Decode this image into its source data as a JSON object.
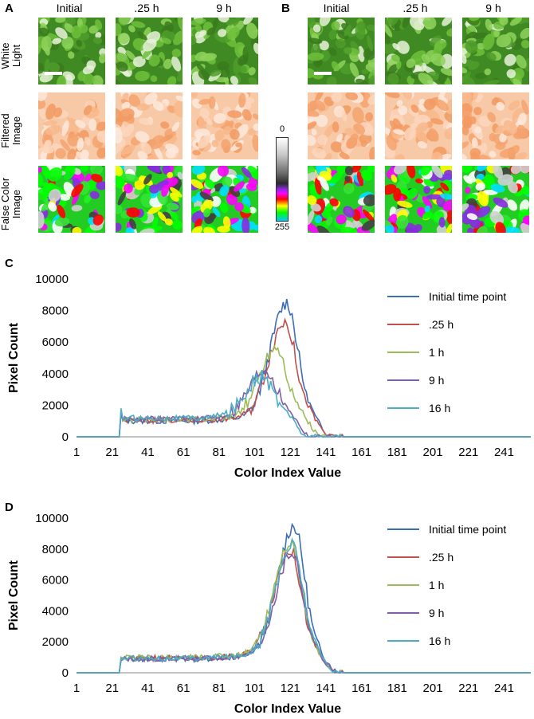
{
  "panels": {
    "A": {
      "letter": "A",
      "columns": [
        "Initial",
        ".25 h",
        "9 h"
      ],
      "rows": [
        [
          "White",
          "Light"
        ],
        [
          "Filtered",
          "Image"
        ],
        [
          "False Color",
          "Image"
        ]
      ]
    },
    "B": {
      "letter": "B",
      "columns": [
        "Initial",
        ".25 h",
        "9 h"
      ]
    },
    "colorbar": {
      "top_label": "0",
      "bottom_label": "255"
    }
  },
  "colors": {
    "leaf_green": "#5aa832",
    "filtered_orange": "#f5b58a",
    "series": [
      "#3c6eb4",
      "#c0504d",
      "#9bbb59",
      "#7f5fa8",
      "#4bacc6"
    ]
  },
  "chart_data": [
    {
      "panel": "C",
      "type": "line",
      "xlabel": "Color Index Value",
      "ylabel": "Pixel Count",
      "xlim": [
        1,
        256
      ],
      "ylim": [
        0,
        10000
      ],
      "xticks": [
        1,
        21,
        41,
        61,
        81,
        101,
        121,
        141,
        161,
        181,
        201,
        221,
        241
      ],
      "yticks": [
        0,
        2000,
        4000,
        6000,
        8000,
        10000
      ],
      "legend_position": "top-right",
      "series": [
        {
          "name": "Initial  time point",
          "peak_x": 119,
          "peak_y": 8500,
          "plateau": 1000,
          "start_spike": 1700
        },
        {
          "name": ".25 h",
          "peak_x": 118,
          "peak_y": 7300,
          "plateau": 1050,
          "start_spike": 1500
        },
        {
          "name": "1 h",
          "peak_x": 113,
          "peak_y": 5700,
          "plateau": 1100,
          "start_spike": 1600
        },
        {
          "name": "9 h",
          "peak_x": 107,
          "peak_y": 4300,
          "plateau": 1150,
          "start_spike": 1500
        },
        {
          "name": "16 h",
          "peak_x": 105,
          "peak_y": 3800,
          "plateau": 1200,
          "start_spike": 1800
        }
      ]
    },
    {
      "panel": "D",
      "type": "line",
      "xlabel": "Color Index Value",
      "ylabel": "Pixel Count",
      "xlim": [
        1,
        256
      ],
      "ylim": [
        0,
        10000
      ],
      "xticks": [
        1,
        21,
        41,
        61,
        81,
        101,
        121,
        141,
        161,
        181,
        201,
        221,
        241
      ],
      "yticks": [
        0,
        2000,
        4000,
        6000,
        8000,
        10000
      ],
      "legend_position": "top-right",
      "series": [
        {
          "name": "Initial  time point",
          "peak_x": 123,
          "peak_y": 9500,
          "plateau": 900,
          "start_spike": 1000
        },
        {
          "name": ".25 h",
          "peak_x": 121,
          "peak_y": 8000,
          "plateau": 950,
          "start_spike": 900
        },
        {
          "name": "1 h",
          "peak_x": 121,
          "peak_y": 8500,
          "plateau": 1000,
          "start_spike": 1000
        },
        {
          "name": "9 h",
          "peak_x": 122,
          "peak_y": 7800,
          "plateau": 900,
          "start_spike": 800
        },
        {
          "name": "16 h",
          "peak_x": 122,
          "peak_y": 8300,
          "plateau": 950,
          "start_spike": 950
        }
      ]
    }
  ]
}
